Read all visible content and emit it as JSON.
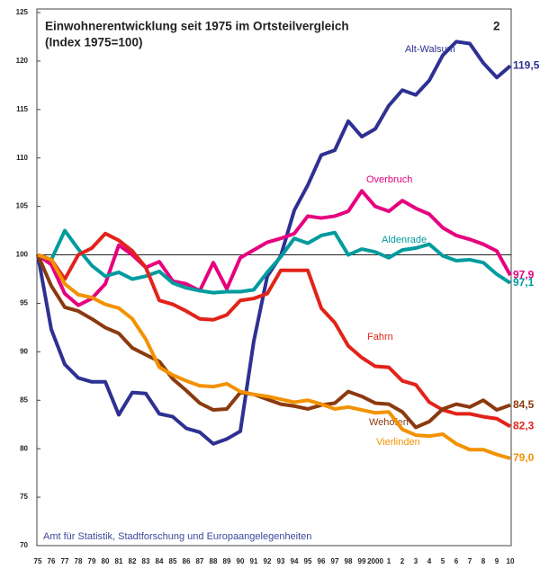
{
  "chart_data": {
    "type": "line",
    "title": "Einwohnerentwicklung seit 1975 im Ortsteilvergleich",
    "subtitle": "(Index 1975=100)",
    "page_number": "2",
    "footer": "Amt für Statistik, Stadtforschung und Europaangelegenheiten",
    "categories": [
      "75",
      "76",
      "77",
      "78",
      "79",
      "80",
      "81",
      "82",
      "83",
      "84",
      "85",
      "86",
      "87",
      "88",
      "89",
      "90",
      "91",
      "92",
      "93",
      "94",
      "95",
      "96",
      "97",
      "98",
      "99",
      "2000",
      "1",
      "2",
      "3",
      "4",
      "5",
      "6",
      "7",
      "8",
      "9",
      "10"
    ],
    "ylim": [
      70,
      125
    ],
    "yticks": [
      70,
      75,
      80,
      85,
      90,
      95,
      100,
      105,
      110,
      115,
      120,
      125
    ],
    "reference_line": 100,
    "series": [
      {
        "name": "Alt-Walsum",
        "color": "#2e3192",
        "end_label": "119,5",
        "values": [
          100,
          92.3,
          88.7,
          87.3,
          86.9,
          86.9,
          83.5,
          85.8,
          85.7,
          83.6,
          83.3,
          82.1,
          81.7,
          80.5,
          81.0,
          81.8,
          91.1,
          97.8,
          99.9,
          104.6,
          107.2,
          110.3,
          110.8,
          113.8,
          112.2,
          113.0,
          115.4,
          117.0,
          116.5,
          118.0,
          120.6,
          122.0,
          121.8,
          119.8,
          118.3,
          119.5
        ]
      },
      {
        "name": "Overbruch",
        "color": "#e6007e",
        "end_label": "97,9",
        "values": [
          100,
          99,
          96,
          94.8,
          95.5,
          97,
          101,
          100,
          98.7,
          99.3,
          97.3,
          97,
          96.3,
          99.2,
          96.5,
          99.7,
          100.5,
          101.3,
          101.7,
          102.2,
          104,
          103.8,
          104,
          104.5,
          106.6,
          105,
          104.5,
          105.6,
          104.8,
          104.2,
          102.8,
          102,
          101.6,
          101.1,
          100.4,
          97.9
        ]
      },
      {
        "name": "Aldenrade",
        "color": "#009b9e",
        "end_label": "97,1",
        "values": [
          100,
          99.5,
          102.5,
          100.6,
          98.9,
          97.8,
          98.2,
          97.5,
          97.8,
          98.3,
          97.1,
          96.6,
          96.3,
          96.1,
          96.2,
          96.2,
          96.4,
          98.2,
          99.8,
          101.7,
          101.2,
          102.0,
          102.3,
          100,
          100.6,
          100.3,
          99.7,
          100.5,
          100.7,
          101.1,
          99.9,
          99.4,
          99.5,
          99.2,
          98,
          97.1
        ]
      },
      {
        "name": "Fahrn",
        "color": "#e2231a",
        "end_label": "82,3",
        "values": [
          100,
          99.5,
          97.5,
          100,
          100.7,
          102.2,
          101.5,
          100.4,
          98.7,
          95.3,
          94.9,
          94.2,
          93.4,
          93.3,
          93.8,
          95.3,
          95.5,
          96,
          98.4,
          98.4,
          98.4,
          94.5,
          93,
          90.6,
          89.4,
          88.5,
          88.4,
          87,
          86.6,
          84.8,
          84,
          83.6,
          83.6,
          83.3,
          83.1,
          82.3
        ]
      },
      {
        "name": "Wehofen",
        "color": "#8b3a0f",
        "end_label": "84,5",
        "values": [
          100,
          96.8,
          94.6,
          94.2,
          93.4,
          92.5,
          91.9,
          90.4,
          89.7,
          89,
          87.2,
          86,
          84.7,
          84,
          84.1,
          85.8,
          85.6,
          85.1,
          84.6,
          84.4,
          84.1,
          84.5,
          84.7,
          85.9,
          85.4,
          84.7,
          84.6,
          83.8,
          82.2,
          82.8,
          84.1,
          84.6,
          84.3,
          85,
          84,
          84.5
        ]
      },
      {
        "name": "Vierlinden",
        "color": "#f39200",
        "end_label": "79,0",
        "values": [
          100,
          99.5,
          97,
          95.9,
          95.6,
          94.9,
          94.5,
          93.4,
          91.3,
          88.4,
          87.6,
          87,
          86.5,
          86.4,
          86.7,
          85.9,
          85.6,
          85.4,
          85.1,
          84.8,
          85,
          84.6,
          84.1,
          84.3,
          84,
          83.7,
          83.8,
          82,
          81.4,
          81.3,
          81.5,
          80.5,
          79.9,
          79.9,
          79.4,
          79.0
        ]
      }
    ]
  }
}
